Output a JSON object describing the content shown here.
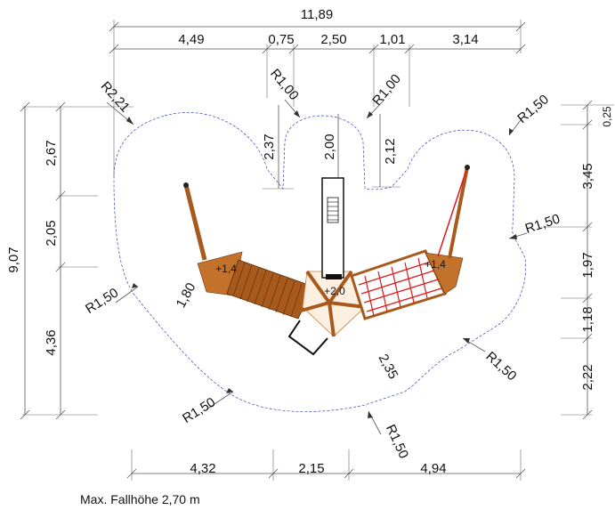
{
  "top_dims": {
    "overall": "11,89",
    "segments": [
      "4,49",
      "0,75",
      "2,50",
      "1,01",
      "3,14"
    ]
  },
  "bottom_dims": [
    "4,32",
    "2,15",
    "4,94"
  ],
  "left_dims": {
    "overall": "9,07",
    "segments": [
      "2,67",
      "2,05",
      "4,36"
    ]
  },
  "right_dims": [
    "0,25",
    "3,45",
    "1,97",
    "1,18",
    "2,22"
  ],
  "inner_dims": {
    "notch_left": "2,37",
    "notch_center": "2,00",
    "notch_right": "2,12",
    "swing_left": "1,80",
    "swing_right": "2,35"
  },
  "radii": {
    "top_left": "R2,21",
    "notch_left": "R1,00",
    "notch_right": "R1,00",
    "top_right": "R1,50",
    "right_mid": "R1,50",
    "left_mid": "R1,50",
    "bottom_left": "R1,50",
    "bottom_center": "R1,50",
    "bottom_right": "R1,50"
  },
  "heights": {
    "left_platform": "+1,4",
    "center_platform": "+2,0",
    "right_platform": "+1,4"
  },
  "caption": "Max. Fallhöhe 2,70 m",
  "colors": {
    "wood": "#a85a1c",
    "net": "#e01818",
    "zone_outline": "#3a43b8"
  }
}
